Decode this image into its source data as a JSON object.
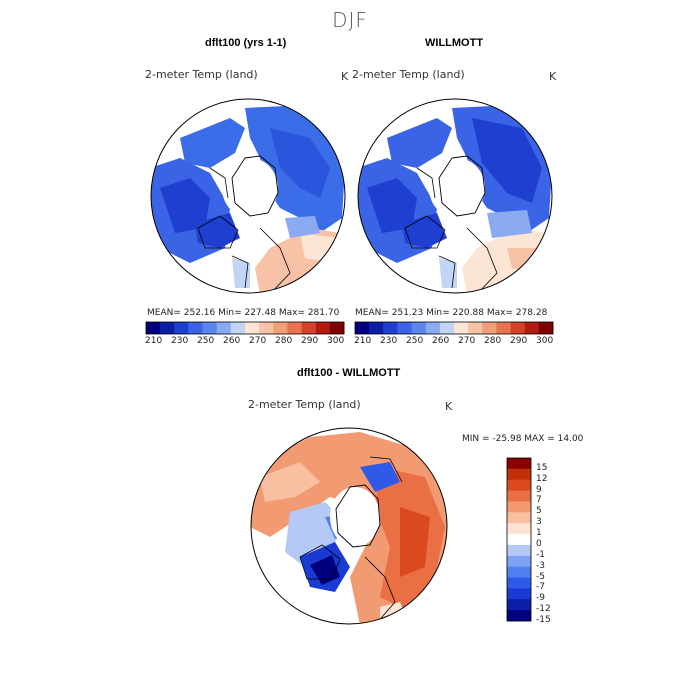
{
  "title": "DJF",
  "colors": {
    "abs_scale": [
      "#00007f",
      "#0a1ea8",
      "#1e3fcf",
      "#3a63e6",
      "#5b86ee",
      "#8aabf2",
      "#c3d5f6",
      "#fde5d6",
      "#f7c2a5",
      "#f19f79",
      "#e8734f",
      "#d3432a",
      "#b21a10",
      "#7f0000"
    ],
    "diff_scale": [
      "#00007f",
      "#0a1ea8",
      "#1a3ad4",
      "#2f5ae8",
      "#4f7ff0",
      "#7ea2f4",
      "#b5c9f6",
      "#ffffff",
      "#fde3d2",
      "#f8c0a0",
      "#f29a72",
      "#ea6f45",
      "#db4a1f",
      "#c22e08",
      "#8b0000"
    ],
    "land_cold": "#3b6de8",
    "land_cool": "#6f95ef",
    "land_warm": "#f3b89a"
  },
  "panels": [
    {
      "title": "dflt100 (yrs 1-1)",
      "variable": "2-meter Temp (land)",
      "units": "K",
      "stats": "MEAN= 252.16   Min= 227.48   Max= 281.70"
    },
    {
      "title": "WILLMOTT",
      "variable": "2-meter Temp (land)",
      "units": "K",
      "stats": "MEAN= 251.23   Min= 220.88   Max= 278.28"
    }
  ],
  "abs_colorbar": {
    "ticks": [
      "210",
      "230",
      "250",
      "260",
      "270",
      "280",
      "290",
      "300"
    ]
  },
  "diff_panel": {
    "title": "dflt100 - WILLMOTT",
    "variable": "2-meter Temp (land)",
    "units": "K",
    "stats": "MIN = -25.98 MAX =  14.00",
    "ticks": [
      "15",
      "12",
      "9",
      "7",
      "5",
      "3",
      "1",
      "0",
      "-1",
      "-3",
      "-5",
      "-7",
      "-9",
      "-12",
      "-15"
    ]
  },
  "chart_data": [
    {
      "type": "heatmap",
      "title": "dflt100 (yrs 1-1)",
      "subtitle": "2-meter Temp (land)",
      "units": "K",
      "projection": "polar stereographic (north)",
      "mean": 252.16,
      "min": 227.48,
      "max": 281.7,
      "colorbar_levels": [
        210,
        230,
        250,
        260,
        270,
        280,
        290,
        300
      ]
    },
    {
      "type": "heatmap",
      "title": "WILLMOTT",
      "subtitle": "2-meter Temp (land)",
      "units": "K",
      "projection": "polar stereographic (north)",
      "mean": 251.23,
      "min": 220.88,
      "max": 278.28,
      "colorbar_levels": [
        210,
        230,
        250,
        260,
        270,
        280,
        290,
        300
      ]
    },
    {
      "type": "heatmap",
      "title": "dflt100 - WILLMOTT",
      "subtitle": "2-meter Temp (land)",
      "units": "K",
      "projection": "polar stereographic (north)",
      "min": -25.98,
      "max": 14.0,
      "colorbar_levels": [
        15,
        12,
        9,
        7,
        5,
        3,
        1,
        0,
        -1,
        -3,
        -5,
        -7,
        -9,
        -12,
        -15
      ]
    }
  ]
}
